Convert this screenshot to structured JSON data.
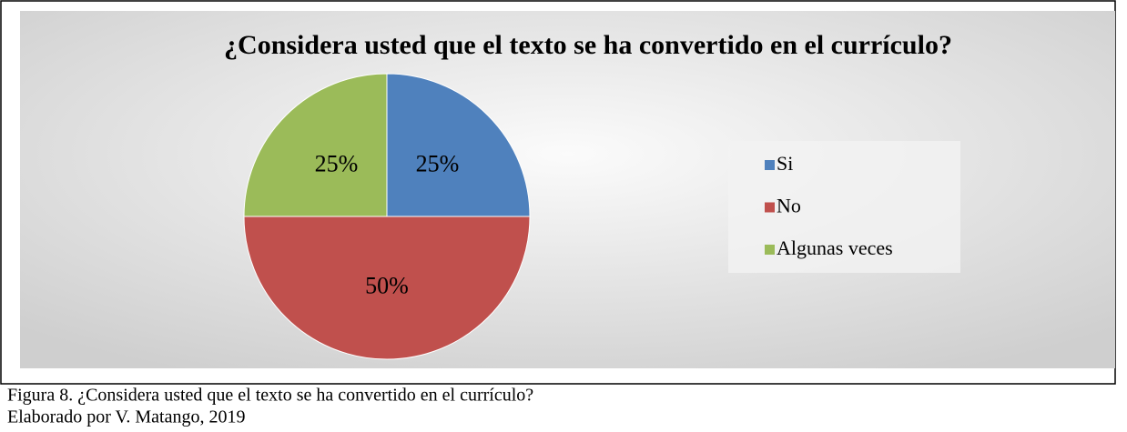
{
  "chart_data": {
    "type": "pie",
    "title": "¿Considera usted que el texto se ha convertido en el currículo?",
    "categories": [
      "Si",
      "No",
      "Algunas veces"
    ],
    "values": [
      25,
      50,
      25
    ],
    "value_labels": [
      "25%",
      "50%",
      "25%"
    ],
    "colors": [
      "#4f81bd",
      "#c0504d",
      "#9bbb59"
    ],
    "legend": "right"
  },
  "caption": "Figura  8. ¿Considera usted que el texto se ha convertido en el currículo?",
  "credit": "Elaborado por V. Matango, 2019"
}
